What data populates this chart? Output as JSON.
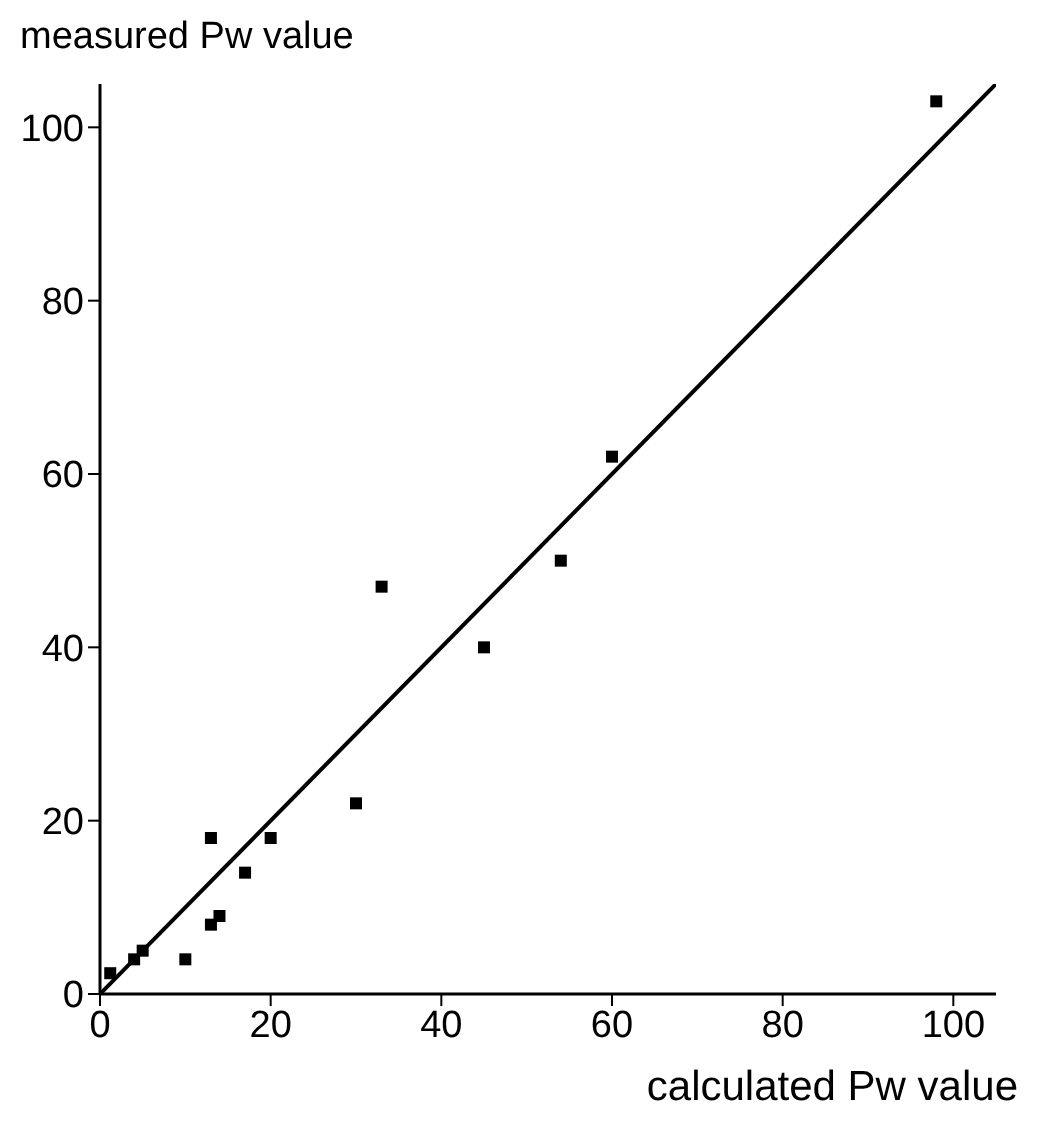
{
  "chart_data": {
    "type": "scatter",
    "xlabel": "calculated Pw value",
    "ylabel": "measured Pw value",
    "xlim": [
      0,
      105
    ],
    "ylim": [
      0,
      105
    ],
    "xticks": [
      0,
      20,
      40,
      60,
      80,
      100
    ],
    "yticks": [
      0,
      20,
      40,
      60,
      80,
      100
    ],
    "grid": false,
    "marker": "square",
    "series": [
      {
        "type": "scatter",
        "color": "#000000",
        "x": [
          1.2,
          4,
          5,
          10,
          13,
          14,
          17,
          13,
          20,
          30,
          33,
          45,
          54,
          60,
          98
        ],
        "values": [
          2.4,
          4,
          5,
          4,
          8,
          9,
          14,
          18,
          18,
          22,
          47,
          40,
          50,
          62,
          103
        ]
      },
      {
        "type": "line",
        "color": "#000000",
        "marker": "none",
        "line_style": "solid",
        "x": [
          0,
          105
        ],
        "values": [
          0,
          105
        ]
      }
    ]
  }
}
